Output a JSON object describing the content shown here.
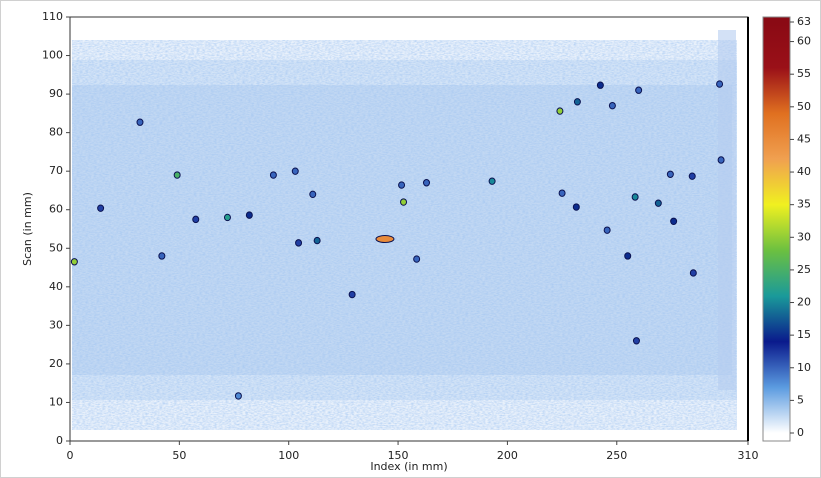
{
  "chart_data": {
    "type": "heatmap",
    "xlabel": "Index (in mm)",
    "ylabel": "Scan (in mm)",
    "xlim": [
      0,
      310
    ],
    "xticks": [
      0,
      50,
      100,
      150,
      200,
      250,
      310
    ],
    "ylim": [
      0,
      110
    ],
    "yticks": [
      0,
      10,
      20,
      30,
      40,
      50,
      60,
      70,
      80,
      90,
      100,
      110
    ],
    "x": [
      2,
      32,
      49,
      14,
      42,
      57.5,
      72,
      82,
      93,
      103,
      104.5,
      113,
      111,
      144,
      151.6,
      152.5,
      158.5,
      163,
      193,
      129,
      224,
      232,
      242.5,
      248,
      260,
      225,
      231.5,
      245.6,
      255,
      258.4,
      269,
      274.5,
      276,
      284.5,
      285,
      259,
      297,
      297.7,
      77
    ],
    "y": [
      46.5,
      82.7,
      69,
      60.4,
      48,
      57.5,
      58,
      58.6,
      69,
      70,
      51.4,
      52,
      64,
      52.4,
      66.4,
      62,
      47.2,
      67,
      67.4,
      38,
      85.6,
      88,
      92.3,
      87,
      91,
      64.3,
      60.7,
      54.7,
      48,
      63.3,
      61.7,
      69.2,
      57,
      68.7,
      43.6,
      26,
      92.6,
      72.9,
      11.7
    ],
    "values": [
      30,
      10,
      25,
      12,
      10,
      12,
      22,
      15,
      10,
      10,
      12,
      18,
      10,
      45,
      10,
      30,
      10,
      10,
      20,
      12,
      30,
      18,
      15,
      10,
      10,
      10,
      15,
      10,
      15,
      20,
      18,
      10,
      15,
      12,
      12,
      12,
      10,
      10,
      8
    ],
    "colorbar": {
      "lim": [
        0,
        63
      ],
      "ticks": [
        0,
        5,
        10,
        15,
        20,
        25,
        30,
        35,
        40,
        45,
        50,
        55,
        60,
        63
      ],
      "colors": [
        "#ffffff",
        "#5b9be0",
        "#0a1a8c",
        "#1a9a9a",
        "#6cc040",
        "#f0f020",
        "#f0a050",
        "#e07020",
        "#9a1018",
        "#8a0a14"
      ]
    }
  }
}
